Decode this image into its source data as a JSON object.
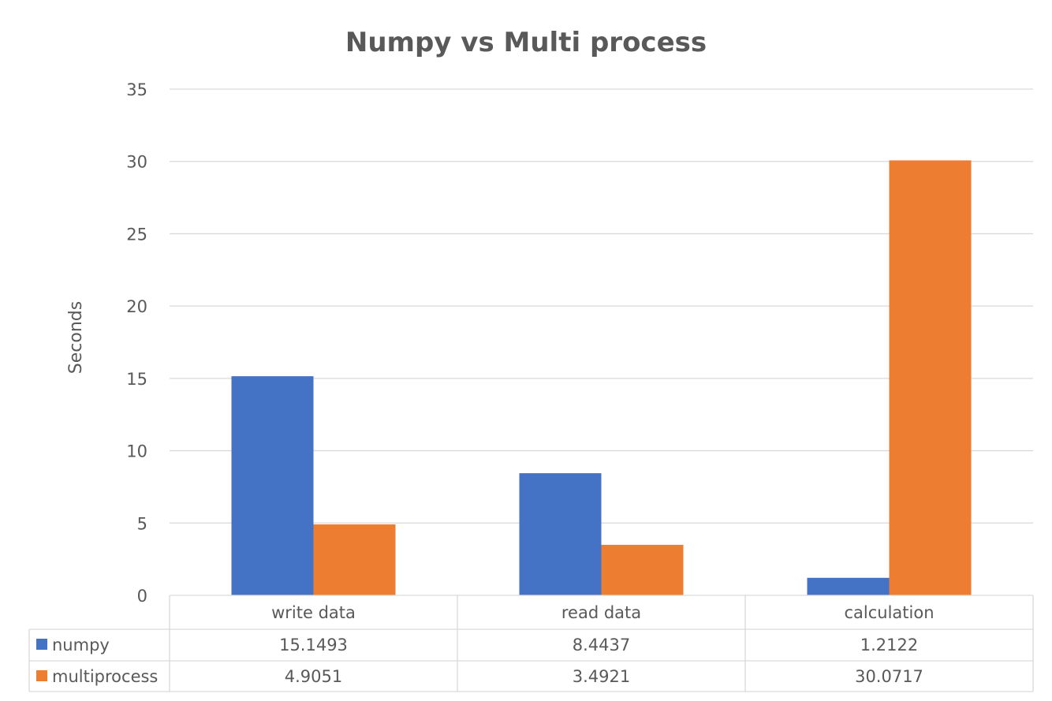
{
  "chart_data": {
    "type": "bar",
    "title": "Numpy vs Multi process",
    "xlabel": "",
    "ylabel": "Seconds",
    "categories": [
      "write data",
      "read data",
      "calculation"
    ],
    "series": [
      {
        "name": "numpy",
        "values": [
          15.1493,
          8.4437,
          1.2122
        ],
        "labels": [
          "15.1493",
          "8.4437",
          "1.2122"
        ],
        "color": "#4472C4"
      },
      {
        "name": "multiprocess",
        "values": [
          4.9051,
          3.4921,
          30.0717
        ],
        "labels": [
          "4.9051",
          "3.4921",
          "30.0717"
        ],
        "color": "#ED7D31"
      }
    ],
    "ylim": [
      0,
      35
    ],
    "yticks": [
      "0",
      "5",
      "10",
      "15",
      "20",
      "25",
      "30",
      "35"
    ],
    "grid": true,
    "legend": "data-table",
    "gridline_color": "#D9D9D9",
    "text_color": "#595959"
  }
}
